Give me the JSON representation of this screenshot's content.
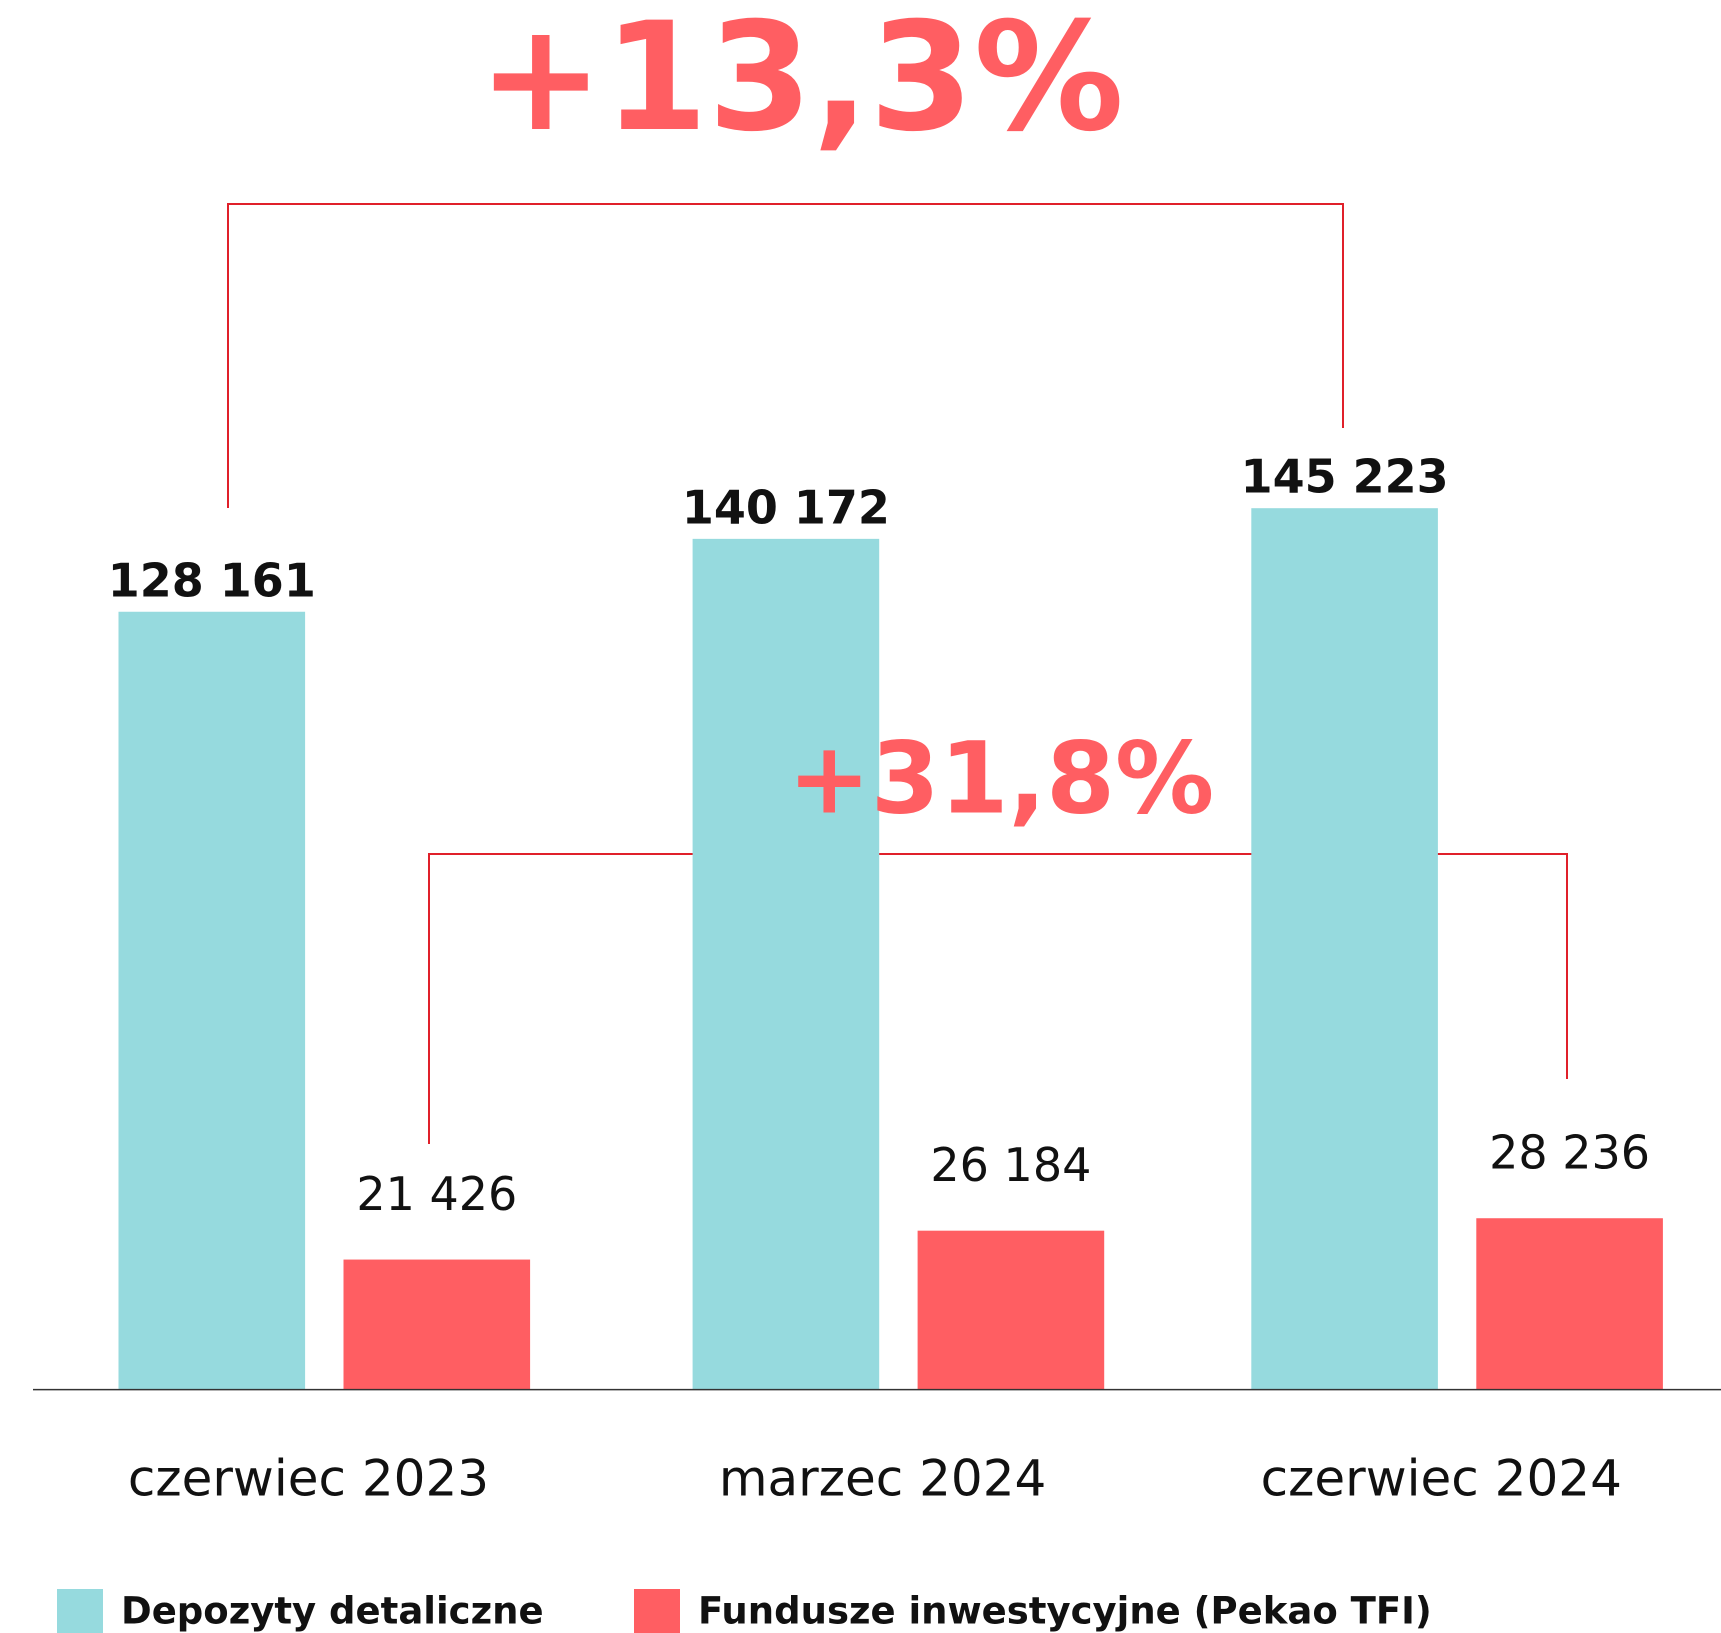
{
  "chart_data": {
    "type": "bar",
    "categories": [
      "czerwiec 2023",
      "marzec 2024",
      "czerwiec 2024"
    ],
    "series": [
      {
        "name": "Depozyty detaliczne",
        "color": "#96dade",
        "values": [
          128161,
          140172,
          145223
        ],
        "value_labels": [
          "128 161",
          "140 172",
          "145 223"
        ]
      },
      {
        "name": "Fundusze inwestycyjne (Pekao TFI)",
        "color": "#ff5e62",
        "values": [
          21426,
          26184,
          28236
        ],
        "value_labels": [
          "21 426",
          "26 184",
          "28 236"
        ]
      }
    ],
    "annotations": [
      "+13,3%",
      "+31,8%"
    ]
  }
}
